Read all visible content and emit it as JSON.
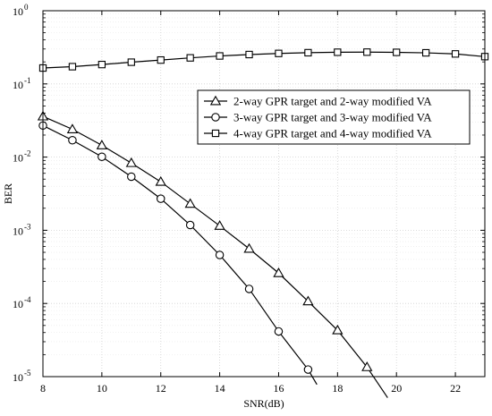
{
  "chart_data": {
    "type": "line",
    "xlabel": "SNR(dB)",
    "ylabel": "BER",
    "xlim": [
      8,
      23
    ],
    "ylim": [
      1e-05,
      1
    ],
    "yscale": "log",
    "grid": true,
    "legend_position": "upper-right",
    "x_ticks": [
      "8",
      "10",
      "12",
      "14",
      "16",
      "18",
      "20",
      "22"
    ],
    "y_ticks": [
      {
        "base": "10",
        "exp": "0"
      },
      {
        "base": "10",
        "exp": "-1"
      },
      {
        "base": "10",
        "exp": "-2"
      },
      {
        "base": "10",
        "exp": "-3"
      },
      {
        "base": "10",
        "exp": "-4"
      },
      {
        "base": "10",
        "exp": "-5"
      }
    ],
    "series": [
      {
        "name": "2-way GPR target and 2-way modified VA",
        "marker": "triangle",
        "x": [
          8,
          9,
          10,
          11,
          12,
          13,
          14,
          15,
          16,
          17,
          18,
          19,
          19.7
        ],
        "y": [
          0.036,
          0.024,
          0.0145,
          0.0083,
          0.0046,
          0.0023,
          0.00115,
          0.00056,
          0.00026,
          0.000107,
          4.3e-05,
          1.35e-05,
          5.15e-06
        ],
        "markers_x": [
          8,
          9,
          10,
          11,
          12,
          13,
          14,
          15,
          16,
          17,
          18,
          19
        ]
      },
      {
        "name": "3-way GPR target and 3-way modified VA",
        "marker": "circle",
        "x": [
          8,
          9,
          10,
          11,
          12,
          13,
          14,
          15,
          16,
          17,
          17.3
        ],
        "y": [
          0.027,
          0.017,
          0.0101,
          0.0054,
          0.0027,
          0.00118,
          0.00046,
          0.000158,
          4.15e-05,
          1.25e-05,
          7.8e-06
        ],
        "markers_x": [
          8,
          9,
          10,
          11,
          12,
          13,
          14,
          15,
          16,
          17
        ]
      },
      {
        "name": "4-way GPR target and 4-way modified VA",
        "marker": "square",
        "x": [
          8,
          9,
          10,
          11,
          12,
          13,
          14,
          15,
          16,
          17,
          18,
          19,
          20,
          21,
          22,
          23
        ],
        "y": [
          0.165,
          0.172,
          0.184,
          0.198,
          0.212,
          0.227,
          0.241,
          0.252,
          0.261,
          0.267,
          0.271,
          0.272,
          0.27,
          0.266,
          0.257,
          0.236
        ],
        "markers_x": [
          8,
          9,
          10,
          11,
          12,
          13,
          14,
          15,
          16,
          17,
          18,
          19,
          20,
          21,
          22,
          23
        ]
      }
    ]
  }
}
